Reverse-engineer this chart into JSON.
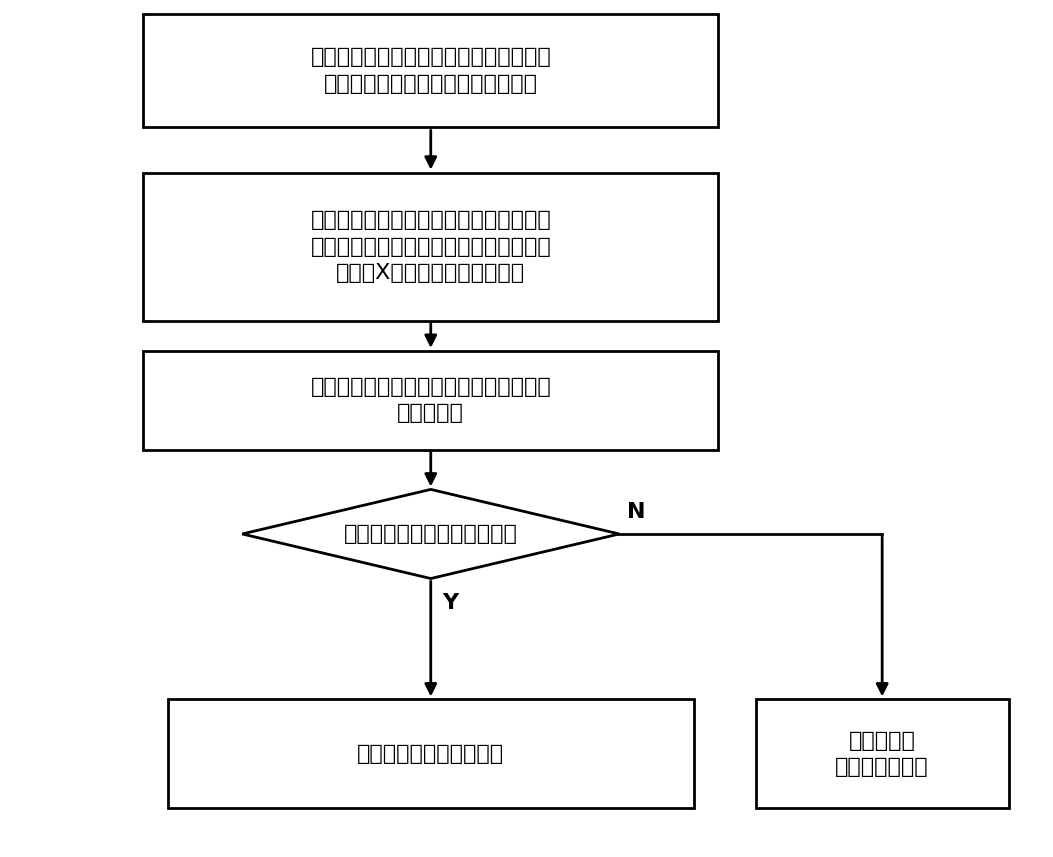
{
  "bg_color": "#ffffff",
  "box_stroke": "#000000",
  "box_fill": "#ffffff",
  "arrow_color": "#000000",
  "font_color": "#000000",
  "box1_text": "在被检测高压断路器的套管上标记出分闸\n触头、引弧触头之间的成像位置区域",
  "box2_text": "在被检测高压断路器处于闭合状态下，使\n用数字化射线成像检测系统对成像位置区\n域进行X射线成像得到检测图像",
  "box3_text": "获取检测图像中分闸触头、引弧触头之间\n的断口距离",
  "diamond_text": "断口距离是否满足设计要求？",
  "box4_text": "分合闸触头插入深度合格",
  "box5_text": "分合闸触头\n插入深度不合格",
  "label_y": "Y",
  "label_n": "N",
  "font_size": 16,
  "lw": 2.0
}
